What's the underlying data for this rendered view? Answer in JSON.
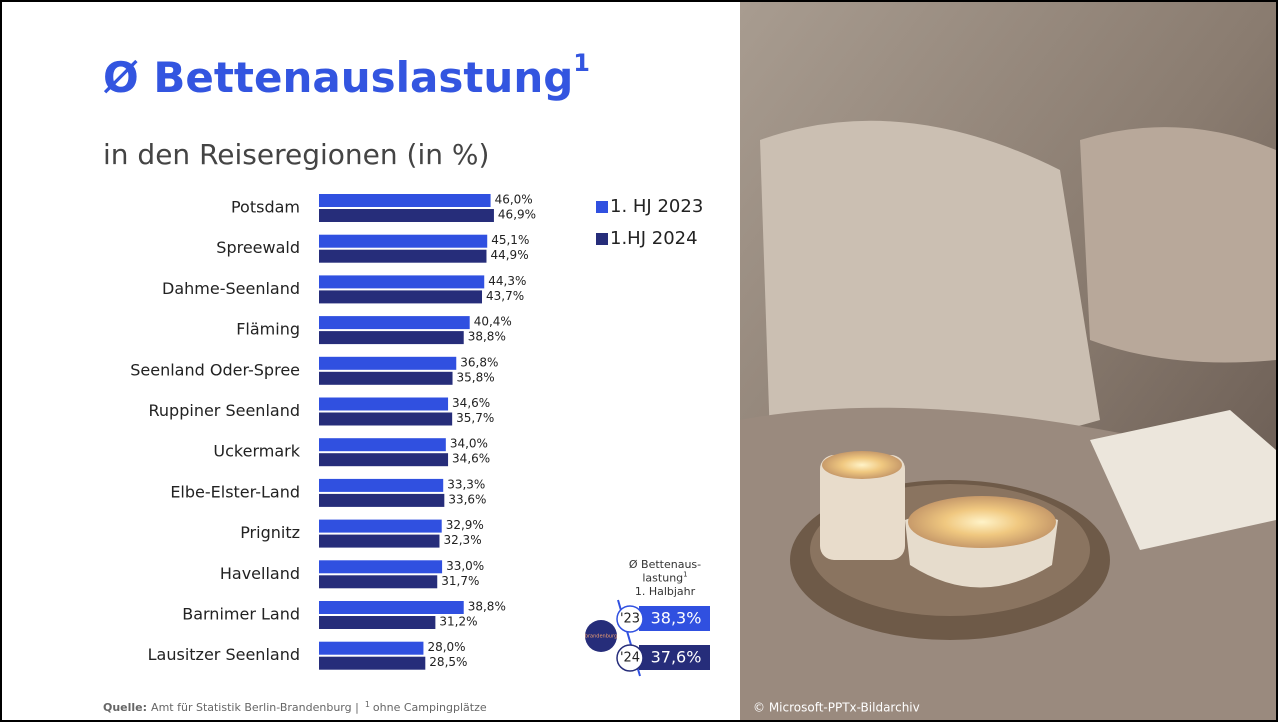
{
  "title": "Ø Bettenauslastung",
  "title_sup": "1",
  "subtitle": "in den Reiseregionen (in %)",
  "chart_data": {
    "type": "bar",
    "orientation": "horizontal",
    "categories": [
      "Potsdam",
      "Spreewald",
      "Dahme-Seenland",
      "Fläming",
      "Seenland Oder-Spree",
      "Ruppiner Seenland",
      "Uckermark",
      "Elbe-Elster-Land",
      "Prignitz",
      "Havelland",
      "Barnimer Land",
      "Lausitzer Seenland"
    ],
    "series": [
      {
        "name": "1. HJ 2023",
        "color": "#3050e0",
        "values": [
          46.0,
          45.1,
          44.3,
          40.4,
          36.8,
          34.6,
          34.0,
          33.3,
          32.9,
          33.0,
          38.8,
          28.0
        ],
        "value_labels": [
          "46,0%",
          "45,1%",
          "44,3%",
          "40,4%",
          "36,8%",
          "34,6%",
          "34,0%",
          "33,3%",
          "32,9%",
          "33,0%",
          "38,8%",
          "28,0%"
        ]
      },
      {
        "name": "1.HJ 2024",
        "color": "#262d7a",
        "values": [
          46.9,
          44.9,
          43.7,
          38.8,
          35.8,
          35.7,
          34.6,
          33.6,
          32.3,
          31.7,
          31.2,
          28.5
        ],
        "value_labels": [
          "46,9%",
          "44,9%",
          "43,7%",
          "38,8%",
          "35,8%",
          "35,7%",
          "34,6%",
          "33,6%",
          "32,3%",
          "31,7%",
          "31,2%",
          "28,5%"
        ]
      }
    ]
  },
  "badge": {
    "lines": [
      "Ø Bettenaus-",
      "lastung",
      "1. Halbjahr"
    ],
    "sup": "1",
    "logo": "brandenburg",
    "rows": [
      {
        "year": "'23",
        "value": "38,3%"
      },
      {
        "year": "'24",
        "value": "37,6%"
      }
    ]
  },
  "source": {
    "label": "Quelle:",
    "text": "Amt für Statistik Berlin-Brandenburg  |",
    "sup": "1",
    "note": "ohne Campingplätze"
  },
  "credit": "© Microsoft-PPTx-Bildarchiv"
}
